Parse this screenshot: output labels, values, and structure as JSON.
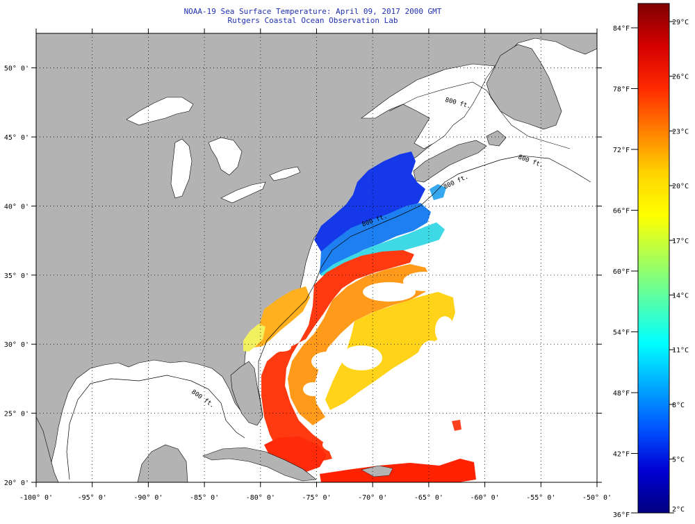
{
  "header": {
    "title": "NOAA-19 Sea Surface Temperature:  April 09, 2017 2000 GMT",
    "subtitle": "Rutgers Coastal Ocean Observation Lab"
  },
  "map": {
    "lon_range": [
      -100,
      -50
    ],
    "lat_range": [
      20,
      52.5
    ],
    "lon_ticks": [
      "-100° 0'",
      "-95° 0'",
      "-90° 0'",
      "-85° 0'",
      "-80° 0'",
      "-75° 0'",
      "-70° 0'",
      "-65° 0'",
      "-60° 0'",
      "-55° 0'",
      "-50° 0'"
    ],
    "lat_ticks": [
      "20° 0'",
      "25° 0'",
      "30° 0'",
      "35° 0'",
      "40° 0'",
      "45° 0'",
      "50° 0'"
    ],
    "isobath_labels": [
      "800 ft.",
      "800 ft.",
      "800 ft.",
      "800 ft.",
      "800 ft."
    ],
    "land_color": "#b3b3b3",
    "background_color": "#ffffff",
    "grid": "dotted"
  },
  "colorbar": {
    "fahrenheit_labels": [
      "84°F",
      "78°F",
      "72°F",
      "66°F",
      "60°F",
      "54°F",
      "48°F",
      "42°F",
      "36°F"
    ],
    "celsius_labels": [
      "29°C",
      "26°C",
      "23°C",
      "20°C",
      "17°C",
      "14°C",
      "11°C",
      "8°C",
      "5°C",
      "2°C"
    ],
    "gradient_stops": [
      "#7f0000",
      "#d40000",
      "#ff2a00",
      "#ff7f00",
      "#ffd400",
      "#ffff00",
      "#aaff55",
      "#55ffaa",
      "#00ffff",
      "#00aaff",
      "#0055ff",
      "#0000d4",
      "#00007f"
    ]
  }
}
